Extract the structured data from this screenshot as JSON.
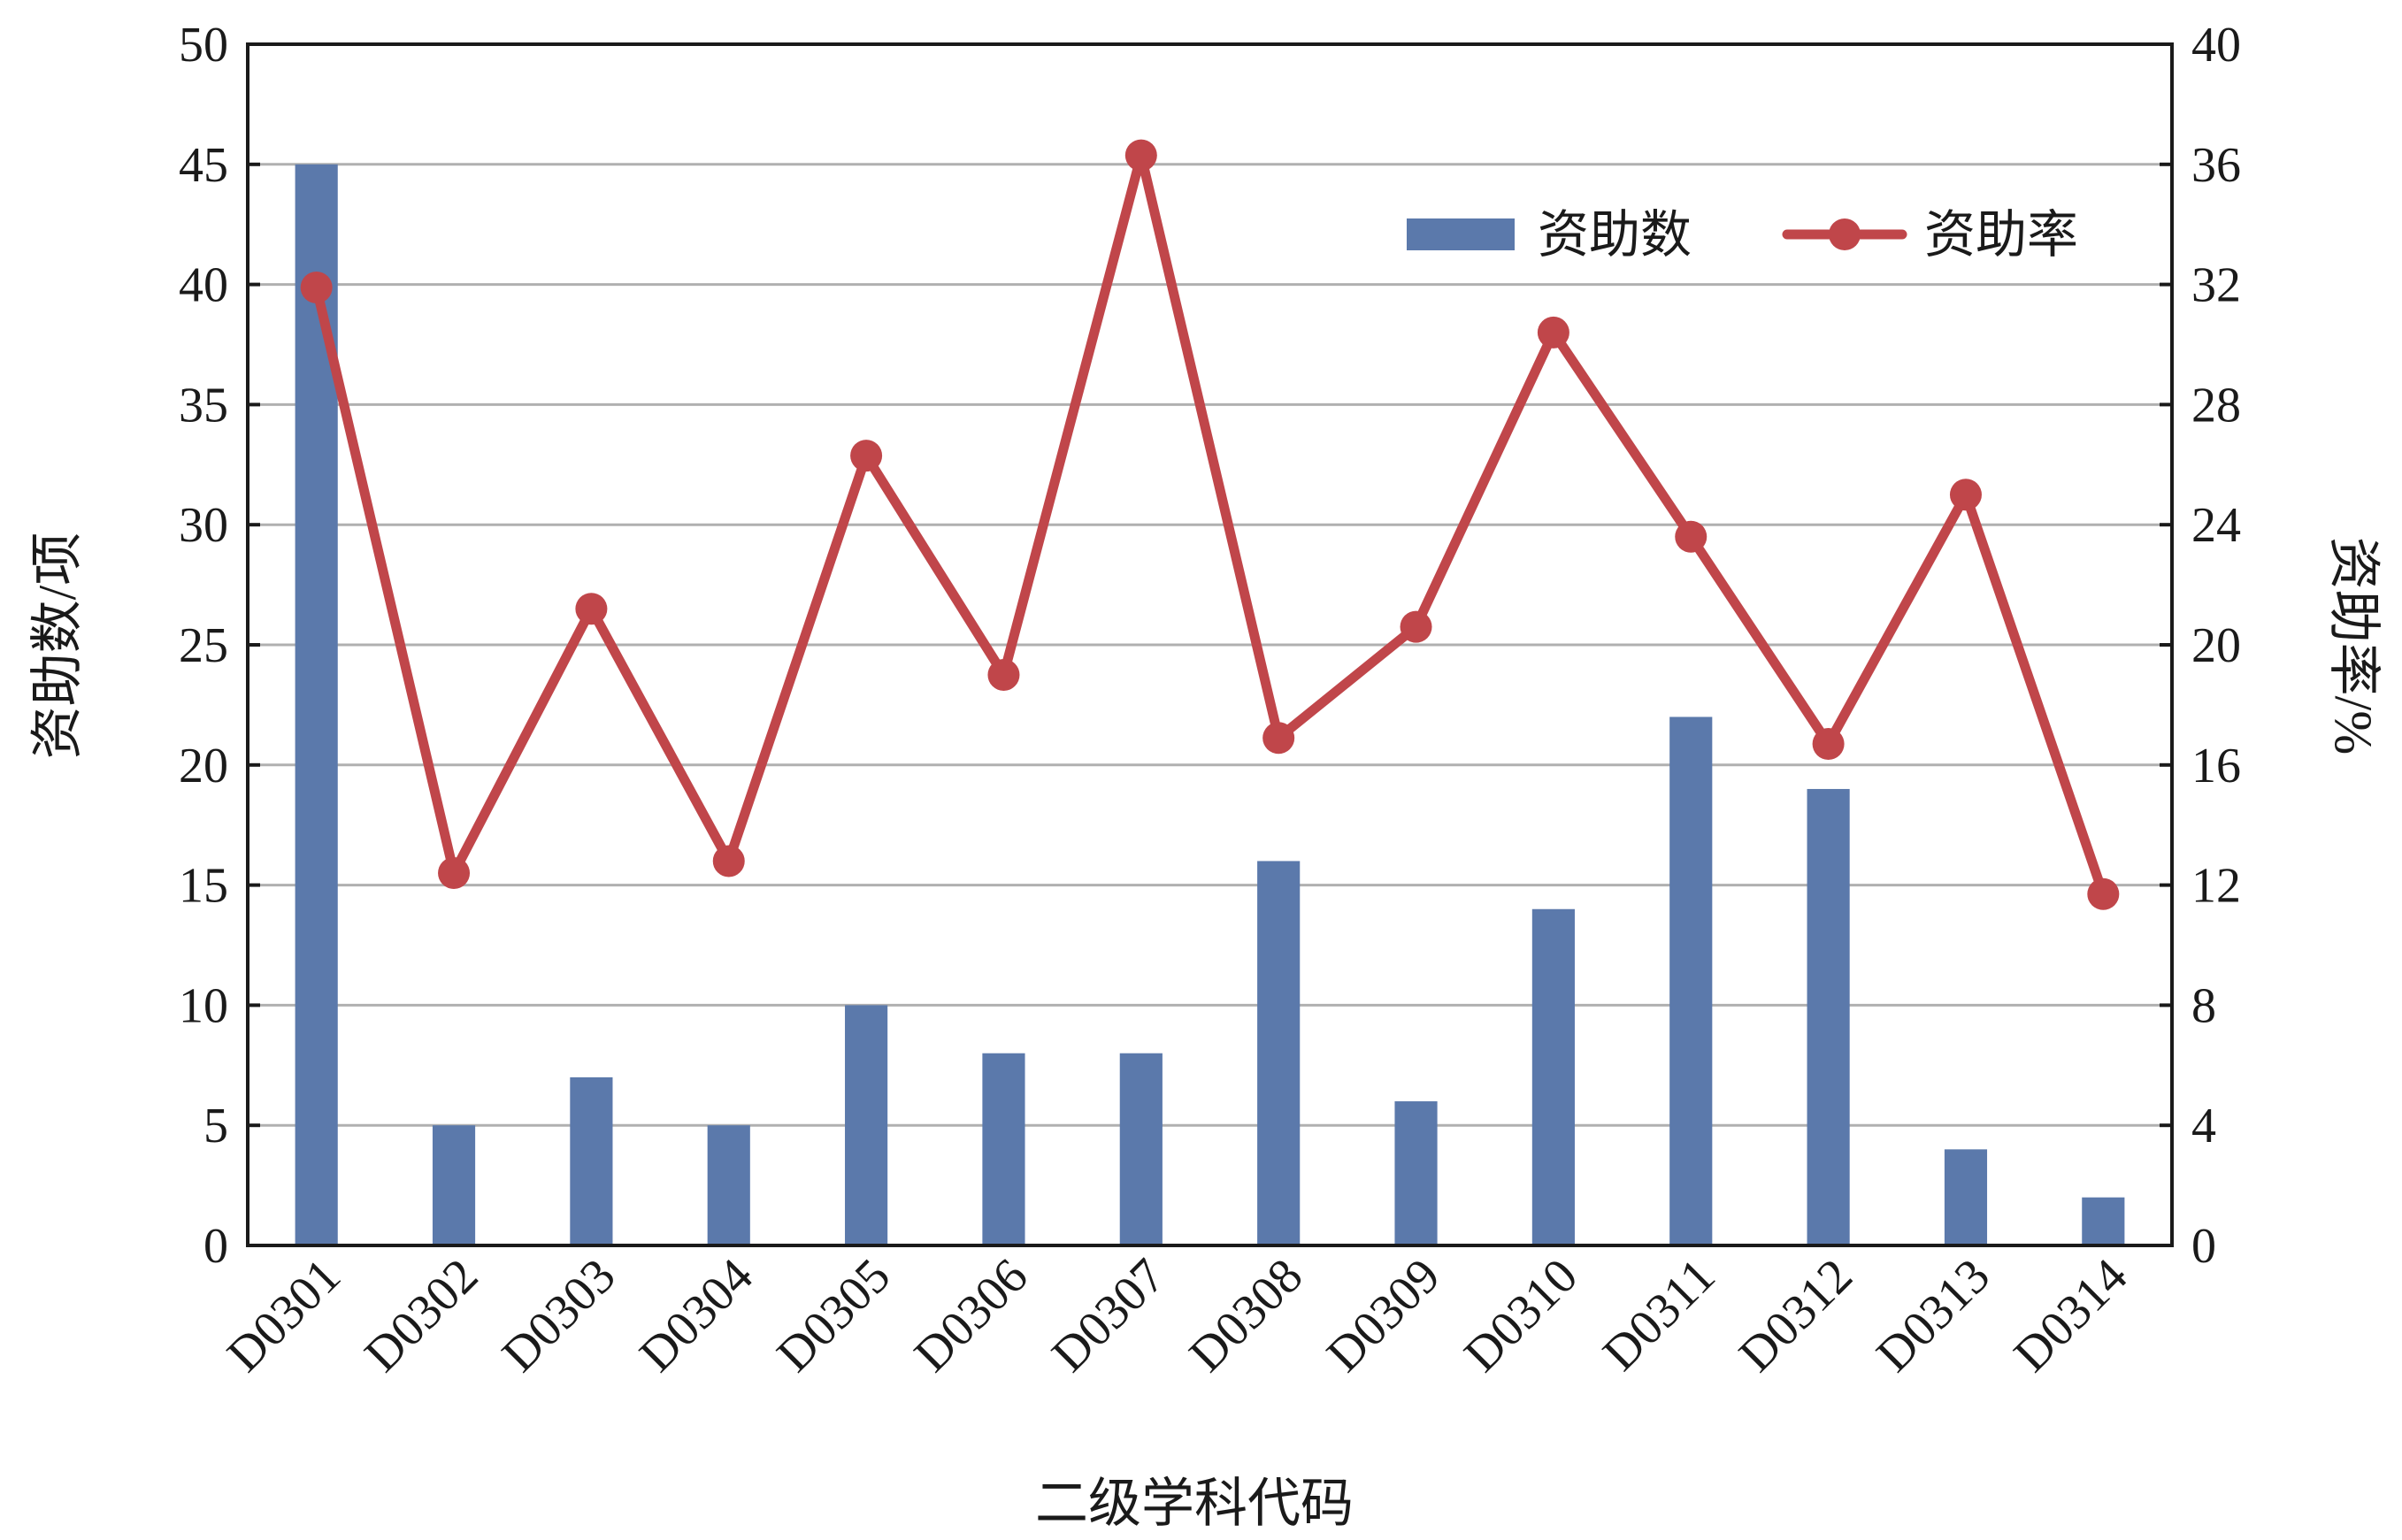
{
  "chart_data": {
    "type": "bar+line",
    "xlabel": "二级学科代码",
    "ylabel": "资助数/项",
    "y2label": "资助率/%",
    "ylim": [
      0,
      50
    ],
    "y2lim": [
      0,
      40
    ],
    "yticks": [
      0,
      5,
      10,
      15,
      20,
      25,
      30,
      35,
      40,
      45,
      50
    ],
    "y2ticks": [
      0,
      4,
      8,
      12,
      16,
      20,
      24,
      28,
      32,
      36,
      40
    ],
    "grid": "horizontal",
    "legend_position": "top-right",
    "categories": [
      "D0301",
      "D0302",
      "D0303",
      "D0304",
      "D0305",
      "D0306",
      "D0307",
      "D0308",
      "D0309",
      "D0310",
      "D0311",
      "D0312",
      "D0313",
      "D0314"
    ],
    "series": [
      {
        "name": "资助数",
        "type": "bar",
        "axis": "left",
        "color": "#5b79ab",
        "values": [
          45,
          5,
          7,
          5,
          10,
          8,
          8,
          16,
          6,
          14,
          22,
          19,
          4,
          2
        ]
      },
      {
        "name": "资助率",
        "type": "line",
        "axis": "right",
        "color": "#c0464a",
        "values": [
          31.9,
          12.4,
          21.2,
          12.8,
          26.3,
          19.0,
          36.3,
          16.9,
          20.6,
          30.4,
          23.6,
          16.7,
          25.0,
          11.7
        ]
      }
    ]
  }
}
